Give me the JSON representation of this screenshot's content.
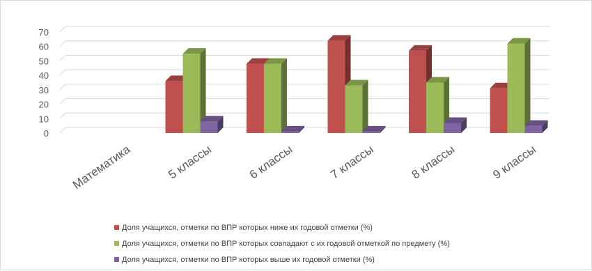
{
  "chart_data": {
    "type": "bar",
    "categories": [
      "Математика",
      "5 классы",
      "6 классы",
      "7 классы",
      "8 классы",
      "9 классы"
    ],
    "series": [
      {
        "name": "Доля учащихся, отметки по ВПР которых  ниже их годовой отметки (%)",
        "color": "#c0504d",
        "values": [
          null,
          36,
          48,
          64,
          57,
          31
        ]
      },
      {
        "name": "Доля учащихся, отметки по ВПР которых совпадают с их годовой отметкой по предмету (%)",
        "color": "#9bbb59",
        "values": [
          null,
          55,
          48,
          33,
          35,
          62
        ]
      },
      {
        "name": "Доля учащихся, отметки по ВПР которых выше их годовой отметки (%)",
        "color": "#8064a2",
        "values": [
          null,
          8,
          1,
          1,
          7,
          5
        ]
      }
    ],
    "yticks": [
      0,
      10,
      20,
      30,
      40,
      50,
      60,
      70
    ],
    "ylim": [
      0,
      70
    ],
    "grid": true,
    "legend_position": "bottom",
    "style": "3d-column"
  }
}
